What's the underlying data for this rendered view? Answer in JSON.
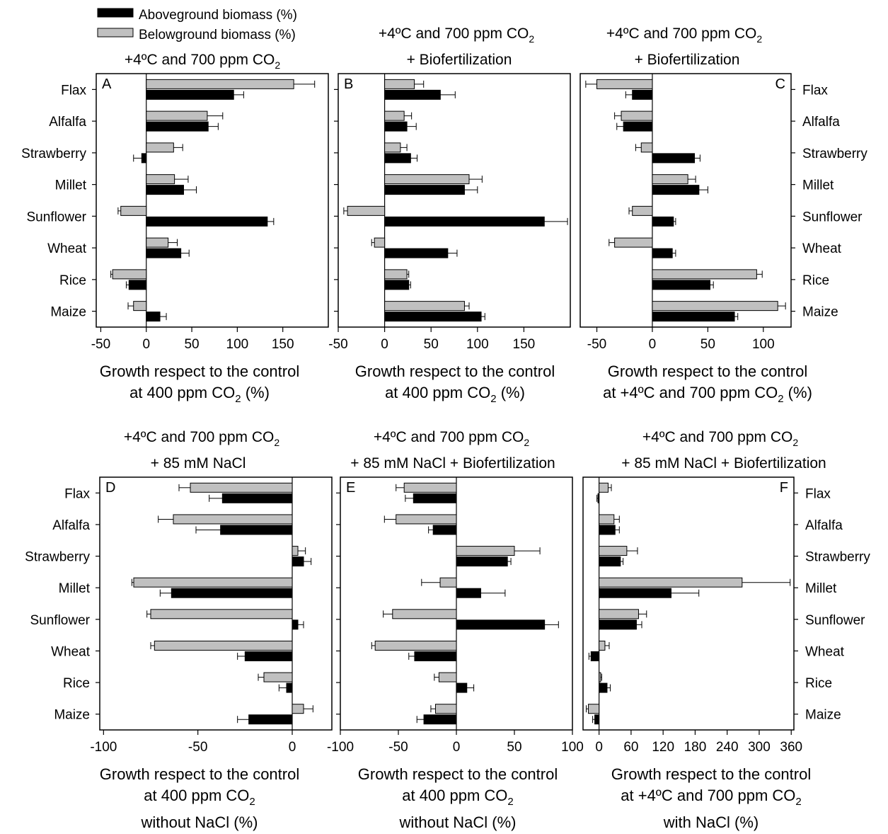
{
  "legend": {
    "above_label": "Aboveground biomass (%)",
    "below_label": "Belowground biomass (%)",
    "above_color": "#000000",
    "below_color": "#c0c0c0"
  },
  "chart_data": [
    {
      "type": "bar",
      "orientation": "horizontal",
      "panel": "A",
      "title": [
        "+4ºC and 700 ppm CO",
        "2",
        ""
      ],
      "xlabel": [
        "Growth respect to the control",
        "at 400 ppm CO",
        "2",
        " (%)"
      ],
      "categories": [
        "Flax",
        "Alfalfa",
        "Strawberry",
        "Millet",
        "Sunflower",
        "Wheat",
        "Rice",
        "Maize"
      ],
      "category_labels_side": "left",
      "xlim": [
        -55,
        200
      ],
      "xticks": [
        -50,
        0,
        50,
        100,
        150
      ],
      "tick_labels": [
        "-50",
        "0",
        "50",
        "100",
        "150"
      ],
      "series": [
        {
          "name": "Belowground biomass (%)",
          "values": [
            162,
            67,
            30,
            31,
            -28,
            24,
            -37,
            -14
          ],
          "errors": [
            23,
            17,
            10,
            15,
            3,
            10,
            2,
            6
          ]
        },
        {
          "name": "Aboveground biomass (%)",
          "values": [
            96,
            68,
            -5,
            41,
            133,
            38,
            -19,
            15
          ],
          "errors": [
            11,
            11,
            9,
            14,
            7,
            9,
            3,
            7
          ]
        }
      ]
    },
    {
      "type": "bar",
      "orientation": "horizontal",
      "panel": "B",
      "title": [
        "+4ºC and 700 ppm CO",
        "2",
        "+ Biofertilization"
      ],
      "xlabel": [
        "Growth respect to the control",
        "at 400 ppm CO",
        "2",
        " (%)"
      ],
      "categories": [
        "Flax",
        "Alfalfa",
        "Strawberry",
        "Millet",
        "Sunflower",
        "Wheat",
        "Rice",
        "Maize"
      ],
      "category_labels_side": "none",
      "xlim": [
        -50,
        200
      ],
      "xticks": [
        -50,
        0,
        50,
        100,
        150
      ],
      "tick_labels": [
        "-50",
        "0",
        "50",
        "100",
        "150"
      ],
      "series": [
        {
          "name": "Belowground biomass (%)",
          "values": [
            32,
            21,
            17,
            91,
            -40,
            -11,
            24,
            86
          ],
          "errors": [
            10,
            8,
            7,
            14,
            4,
            3,
            2,
            5
          ]
        },
        {
          "name": "Aboveground biomass (%)",
          "values": [
            60,
            24,
            28,
            86,
            172,
            68,
            26,
            104
          ],
          "errors": [
            16,
            10,
            7,
            14,
            25,
            10,
            2,
            4
          ]
        }
      ]
    },
    {
      "type": "bar",
      "orientation": "horizontal",
      "panel": "C",
      "title": [
        "+4ºC and 700 ppm CO",
        "2",
        "+ Biofertilization"
      ],
      "xlabel": [
        "Growth respect to the control",
        "at +4ºC and 700 ppm CO",
        "2",
        " (%)"
      ],
      "categories": [
        "Flax",
        "Alfalfa",
        "Strawberry",
        "Millet",
        "Sunflower",
        "Wheat",
        "Rice",
        "Maize"
      ],
      "category_labels_side": "right",
      "xlim": [
        -65,
        125
      ],
      "xticks": [
        -50,
        0,
        50,
        100
      ],
      "tick_labels": [
        "-50",
        "0",
        "50",
        "100"
      ],
      "series": [
        {
          "name": "Belowground biomass (%)",
          "values": [
            -50,
            -28,
            -10,
            32,
            -18,
            -34,
            94,
            113
          ],
          "errors": [
            10,
            6,
            5,
            7,
            3,
            5,
            5,
            7
          ]
        },
        {
          "name": "Aboveground biomass (%)",
          "values": [
            -18,
            -26,
            38,
            42,
            19,
            18,
            52,
            74
          ],
          "errors": [
            6,
            6,
            5,
            8,
            2,
            3,
            3,
            3
          ]
        }
      ]
    },
    {
      "type": "bar",
      "orientation": "horizontal",
      "panel": "D",
      "title": [
        "+4ºC and 700 ppm CO",
        "2",
        "+ 85 mM NaCl"
      ],
      "xlabel": [
        "Growth respect to the control",
        "at 400 ppm CO",
        "2",
        "without NaCl (%)"
      ],
      "categories": [
        "Flax",
        "Alfalfa",
        "Strawberry",
        "Millet",
        "Sunflower",
        "Wheat",
        "Rice",
        "Maize"
      ],
      "category_labels_side": "left",
      "xlim": [
        -102,
        21
      ],
      "xticks": [
        -100,
        -50,
        0
      ],
      "tick_labels": [
        "-100",
        "-50",
        "0"
      ],
      "series": [
        {
          "name": "Belowground biomass (%)",
          "values": [
            -54,
            -63,
            3,
            -84,
            -75,
            -73,
            -15,
            6
          ],
          "errors": [
            6,
            8,
            4,
            1,
            2,
            2,
            3,
            5
          ]
        },
        {
          "name": "Aboveground biomass (%)",
          "values": [
            -37,
            -38,
            6,
            -64,
            3,
            -25,
            -3,
            -23
          ],
          "errors": [
            7,
            13,
            4,
            6,
            3,
            4,
            4,
            6
          ]
        }
      ]
    },
    {
      "type": "bar",
      "orientation": "horizontal",
      "panel": "E",
      "title": [
        "+4ºC and 700 ppm CO",
        "2",
        "+ 85 mM NaCl + Biofertilization"
      ],
      "xlabel": [
        "Growth respect to the control",
        "at 400 ppm CO",
        "2",
        "without NaCl (%)"
      ],
      "categories": [
        "Flax",
        "Alfalfa",
        "Strawberry",
        "Millet",
        "Sunflower",
        "Wheat",
        "Rice",
        "Maize"
      ],
      "category_labels_side": "none",
      "xlim": [
        -100,
        100
      ],
      "xticks": [
        -100,
        -50,
        0,
        50,
        100
      ],
      "tick_labels": [
        "-100",
        "-50",
        "0",
        "50",
        "100"
      ],
      "series": [
        {
          "name": "Belowground biomass (%)",
          "values": [
            -45,
            -52,
            50,
            -14,
            -55,
            -70,
            -15,
            -18
          ],
          "errors": [
            7,
            10,
            22,
            16,
            8,
            3,
            4,
            4
          ]
        },
        {
          "name": "Aboveground biomass (%)",
          "values": [
            -37,
            -20,
            44,
            21,
            76,
            -36,
            9,
            -28
          ],
          "errors": [
            7,
            4,
            3,
            21,
            12,
            5,
            6,
            6
          ]
        }
      ]
    },
    {
      "type": "bar",
      "orientation": "horizontal",
      "panel": "F",
      "title": [
        "+4ºC and 700 ppm CO",
        "2",
        "+ 85 mM NaCl + Biofertilization"
      ],
      "xlabel": [
        "Growth respect to the control",
        "at +4ºC and 700 ppm CO",
        "2",
        "with NaCl (%)"
      ],
      "categories": [
        "Flax",
        "Alfalfa",
        "Strawberry",
        "Millet",
        "Sunflower",
        "Wheat",
        "Rice",
        "Maize"
      ],
      "category_labels_side": "right",
      "xlim": [
        -30,
        365
      ],
      "xticks": [
        0,
        60,
        120,
        180,
        240,
        300,
        360
      ],
      "tick_labels": [
        "0",
        "60",
        "120",
        "180",
        "240",
        "300",
        "360"
      ],
      "series": [
        {
          "name": "Belowground biomass (%)",
          "values": [
            17,
            28,
            52,
            268,
            74,
            11,
            3,
            -20
          ],
          "errors": [
            6,
            10,
            20,
            90,
            15,
            8,
            2,
            4
          ]
        },
        {
          "name": "Aboveground biomass (%)",
          "values": [
            -2,
            30,
            40,
            135,
            70,
            -15,
            15,
            -8
          ],
          "errors": [
            2,
            8,
            5,
            52,
            10,
            4,
            6,
            4
          ]
        }
      ]
    }
  ]
}
